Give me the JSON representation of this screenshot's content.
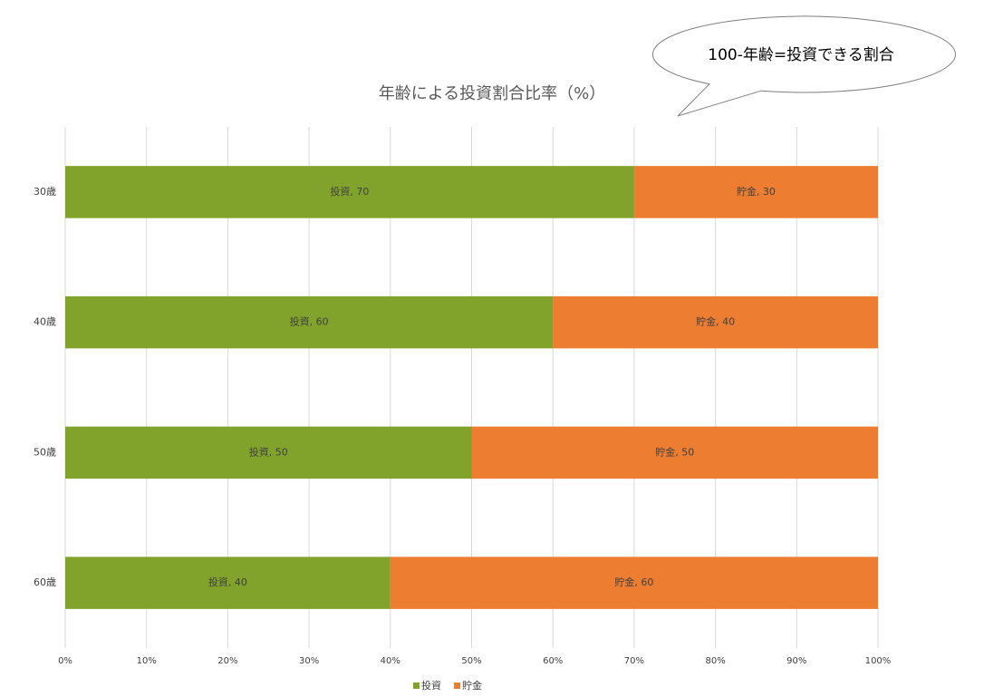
{
  "chart_data": {
    "type": "stacked_barh",
    "title": "年齢による投資割合比率（%）",
    "annotation": "100-年齢=投資できる割合",
    "categories": [
      "30歳",
      "40歳",
      "50歳",
      "60歳"
    ],
    "series": [
      {
        "name": "投資",
        "color": "#82a32b",
        "values": [
          70,
          60,
          50,
          40
        ],
        "value_labels": [
          "投資, 70",
          "投資, 60",
          "投資, 50",
          "投資, 40"
        ]
      },
      {
        "name": "貯金",
        "color": "#ed7d31",
        "values": [
          30,
          40,
          50,
          60
        ],
        "value_labels": [
          "貯金, 30",
          "貯金, 40",
          "貯金, 50",
          "貯金, 60"
        ]
      }
    ],
    "xlim": [
      0,
      100
    ],
    "xticks": [
      {
        "value": 0,
        "label": "0%"
      },
      {
        "value": 10,
        "label": "10%"
      },
      {
        "value": 20,
        "label": "20%"
      },
      {
        "value": 30,
        "label": "30%"
      },
      {
        "value": 40,
        "label": "40%"
      },
      {
        "value": 50,
        "label": "50%"
      },
      {
        "value": 60,
        "label": "60%"
      },
      {
        "value": 70,
        "label": "70%"
      },
      {
        "value": 80,
        "label": "80%"
      },
      {
        "value": 90,
        "label": "90%"
      },
      {
        "value": 100,
        "label": "100%"
      }
    ],
    "grid": true,
    "legend": "bottom"
  }
}
